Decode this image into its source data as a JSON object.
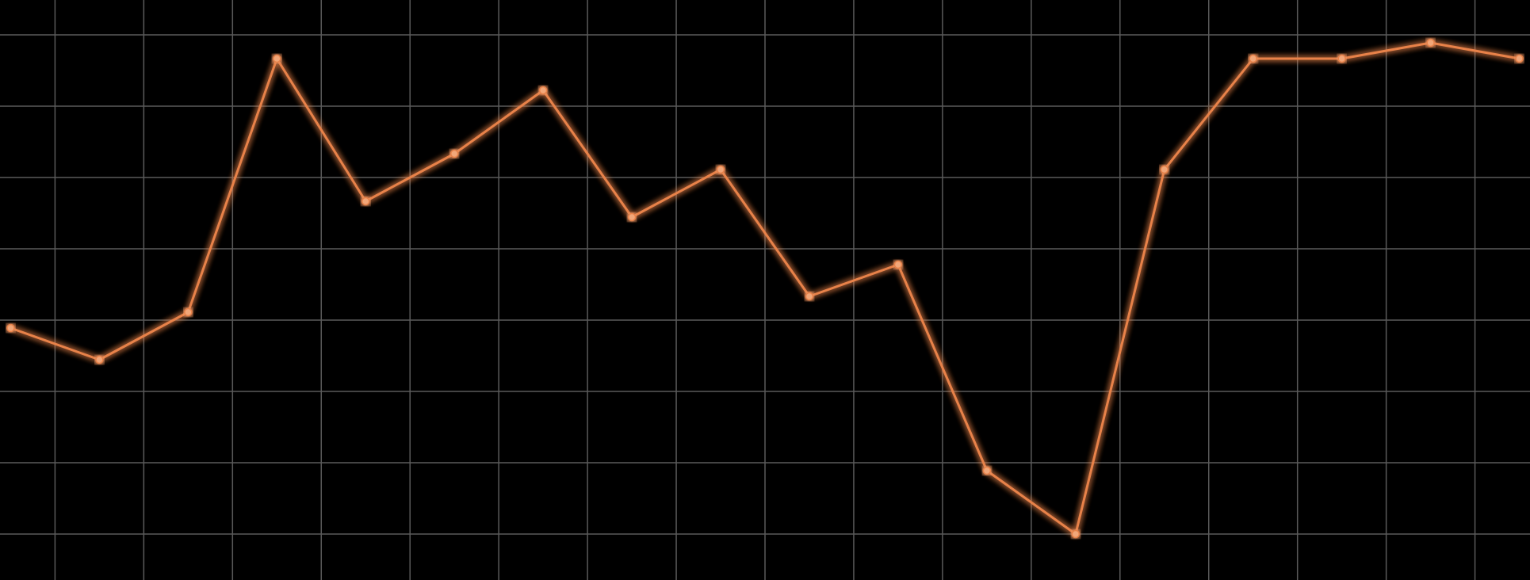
{
  "chart_data": {
    "type": "line",
    "title": "",
    "xlabel": "",
    "ylabel": "",
    "x": [
      1,
      2,
      3,
      4,
      5,
      6,
      7,
      8,
      9,
      10,
      11,
      12,
      13,
      14,
      15,
      16,
      17,
      18
    ],
    "series": [
      {
        "values": [
          37.5,
          35.5,
          38.5,
          54.5,
          45.5,
          48.5,
          52.5,
          44.5,
          47.5,
          39.5,
          41.5,
          28.5,
          24.5,
          47.5,
          54.5,
          54.5,
          55.5,
          54.5
        ]
      }
    ],
    "xlim": [
      0.88,
      18.12
    ],
    "ylim": [
      21.6,
      58.2
    ],
    "grid": true,
    "legend": "none",
    "colors": {
      "background": "#000000",
      "grid": "#5a5a5a",
      "line": "#e8824a",
      "marker_fill": "#f2a779",
      "glow": "#ff7a2e"
    }
  }
}
